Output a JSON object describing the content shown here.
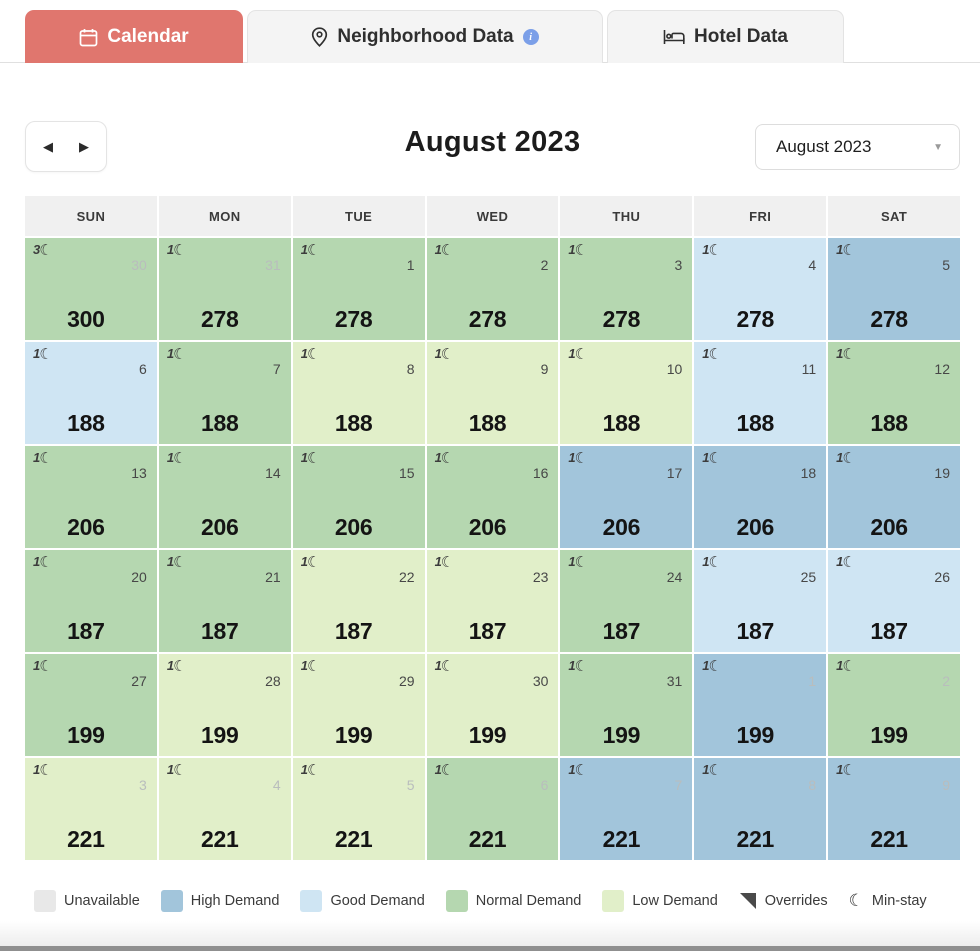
{
  "tabs": [
    {
      "label": "Calendar",
      "icon": "calendar-icon",
      "active": true
    },
    {
      "label": "Neighborhood Data",
      "icon": "location-pin-icon",
      "has_info_icon": true
    },
    {
      "label": "Hotel Data",
      "icon": "bed-icon"
    }
  ],
  "toolbar": {
    "title": "August 2023",
    "prev_arrow": "◀",
    "next_arrow": "▶",
    "month_dropdown": {
      "value": "August 2023",
      "caret": "▼"
    }
  },
  "calendar": {
    "day_headers": [
      "SUN",
      "MON",
      "TUE",
      "WED",
      "THU",
      "FRI",
      "SAT"
    ],
    "weeks": [
      [
        {
          "day": 30,
          "other_month": true,
          "demand": "normal",
          "price": 300,
          "min_stay": 3
        },
        {
          "day": 31,
          "other_month": true,
          "demand": "normal",
          "price": 278,
          "min_stay": 1
        },
        {
          "day": 1,
          "other_month": false,
          "demand": "normal",
          "price": 278,
          "min_stay": 1
        },
        {
          "day": 2,
          "other_month": false,
          "demand": "normal",
          "price": 278,
          "min_stay": 1
        },
        {
          "day": 3,
          "other_month": false,
          "demand": "normal",
          "price": 278,
          "min_stay": 1
        },
        {
          "day": 4,
          "other_month": false,
          "demand": "good",
          "price": 278,
          "min_stay": 1
        },
        {
          "day": 5,
          "other_month": false,
          "demand": "high",
          "price": 278,
          "min_stay": 1
        }
      ],
      [
        {
          "day": 6,
          "other_month": false,
          "demand": "good",
          "price": 188,
          "min_stay": 1
        },
        {
          "day": 7,
          "other_month": false,
          "demand": "normal",
          "price": 188,
          "min_stay": 1
        },
        {
          "day": 8,
          "other_month": false,
          "demand": "low",
          "price": 188,
          "min_stay": 1
        },
        {
          "day": 9,
          "other_month": false,
          "demand": "low",
          "price": 188,
          "min_stay": 1
        },
        {
          "day": 10,
          "other_month": false,
          "demand": "low",
          "price": 188,
          "min_stay": 1
        },
        {
          "day": 11,
          "other_month": false,
          "demand": "good",
          "price": 188,
          "min_stay": 1
        },
        {
          "day": 12,
          "other_month": false,
          "demand": "normal",
          "price": 188,
          "min_stay": 1
        }
      ],
      [
        {
          "day": 13,
          "other_month": false,
          "demand": "normal",
          "price": 206,
          "min_stay": 1
        },
        {
          "day": 14,
          "other_month": false,
          "demand": "normal",
          "price": 206,
          "min_stay": 1
        },
        {
          "day": 15,
          "other_month": false,
          "demand": "normal",
          "price": 206,
          "min_stay": 1
        },
        {
          "day": 16,
          "other_month": false,
          "demand": "normal",
          "price": 206,
          "min_stay": 1
        },
        {
          "day": 17,
          "other_month": false,
          "demand": "high",
          "price": 206,
          "min_stay": 1
        },
        {
          "day": 18,
          "other_month": false,
          "demand": "high",
          "price": 206,
          "min_stay": 1
        },
        {
          "day": 19,
          "other_month": false,
          "demand": "high",
          "price": 206,
          "min_stay": 1
        }
      ],
      [
        {
          "day": 20,
          "other_month": false,
          "demand": "normal",
          "price": 187,
          "min_stay": 1
        },
        {
          "day": 21,
          "other_month": false,
          "demand": "normal",
          "price": 187,
          "min_stay": 1
        },
        {
          "day": 22,
          "other_month": false,
          "demand": "low",
          "price": 187,
          "min_stay": 1
        },
        {
          "day": 23,
          "other_month": false,
          "demand": "low",
          "price": 187,
          "min_stay": 1
        },
        {
          "day": 24,
          "other_month": false,
          "demand": "normal",
          "price": 187,
          "min_stay": 1
        },
        {
          "day": 25,
          "other_month": false,
          "demand": "good",
          "price": 187,
          "min_stay": 1
        },
        {
          "day": 26,
          "other_month": false,
          "demand": "good",
          "price": 187,
          "min_stay": 1
        }
      ],
      [
        {
          "day": 27,
          "other_month": false,
          "demand": "normal",
          "price": 199,
          "min_stay": 1
        },
        {
          "day": 28,
          "other_month": false,
          "demand": "low",
          "price": 199,
          "min_stay": 1
        },
        {
          "day": 29,
          "other_month": false,
          "demand": "low",
          "price": 199,
          "min_stay": 1
        },
        {
          "day": 30,
          "other_month": false,
          "demand": "low",
          "price": 199,
          "min_stay": 1
        },
        {
          "day": 31,
          "other_month": false,
          "demand": "normal",
          "price": 199,
          "min_stay": 1
        },
        {
          "day": 1,
          "other_month": true,
          "demand": "high",
          "price": 199,
          "min_stay": 1
        },
        {
          "day": 2,
          "other_month": true,
          "demand": "normal",
          "price": 199,
          "min_stay": 1
        }
      ],
      [
        {
          "day": 3,
          "other_month": true,
          "demand": "low",
          "price": 221,
          "min_stay": 1
        },
        {
          "day": 4,
          "other_month": true,
          "demand": "low",
          "price": 221,
          "min_stay": 1
        },
        {
          "day": 5,
          "other_month": true,
          "demand": "low",
          "price": 221,
          "min_stay": 1
        },
        {
          "day": 6,
          "other_month": true,
          "demand": "normal",
          "price": 221,
          "min_stay": 1
        },
        {
          "day": 7,
          "other_month": true,
          "demand": "high",
          "price": 221,
          "min_stay": 1
        },
        {
          "day": 8,
          "other_month": true,
          "demand": "high",
          "price": 221,
          "min_stay": 1
        },
        {
          "day": 9,
          "other_month": true,
          "demand": "high",
          "price": 221,
          "min_stay": 1
        }
      ]
    ]
  },
  "demand_colors": {
    "unavailable": "#e8e8e8",
    "high": "#a2c5db",
    "good": "#cfe5f3",
    "normal": "#b5d7b0",
    "low": "#e1efc9"
  },
  "legend": [
    {
      "label": "Unavailable",
      "type": "swatch",
      "color": "#e8e8e8"
    },
    {
      "label": "High Demand",
      "type": "swatch",
      "color": "#a2c5db"
    },
    {
      "label": "Good Demand",
      "type": "swatch",
      "color": "#cfe5f3"
    },
    {
      "label": "Normal Demand",
      "type": "swatch",
      "color": "#b5d7b0"
    },
    {
      "label": "Low Demand",
      "type": "swatch",
      "color": "#e1efc9"
    },
    {
      "label": "Overrides",
      "type": "overrides-icon"
    },
    {
      "label": "Min-stay",
      "type": "minstay-icon",
      "glyph": "☾"
    }
  ],
  "moon_glyph": "☾"
}
